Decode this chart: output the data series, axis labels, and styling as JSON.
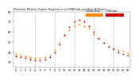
{
  "title": "Milwaukee Weather Outdoor Temperature vs THSW Index per Hour (24 Hours)",
  "hours": [
    0,
    1,
    2,
    3,
    4,
    5,
    6,
    7,
    8,
    9,
    10,
    11,
    12,
    13,
    14,
    15,
    16,
    17,
    18,
    19,
    20,
    21,
    22,
    23
  ],
  "temp": [
    38,
    37,
    36,
    35,
    34,
    34,
    35,
    37,
    42,
    49,
    56,
    62,
    66,
    67,
    66,
    63,
    58,
    53,
    49,
    46,
    44,
    42,
    41,
    39
  ],
  "thsw": [
    36,
    35,
    34,
    33,
    32,
    32,
    33,
    35,
    40,
    48,
    57,
    65,
    70,
    72,
    70,
    66,
    60,
    54,
    49,
    45,
    43,
    40,
    38,
    37
  ],
  "temp_color": "#FF8800",
  "thsw_color": "#CC0000",
  "bg_color": "#ffffff",
  "plot_bg": "#ffffff",
  "grid_color": "#aaaaaa",
  "ylim": [
    25,
    80
  ],
  "xlim": [
    -0.5,
    23.5
  ],
  "yticks": [
    30,
    40,
    50,
    60,
    70,
    80
  ],
  "xticks": [
    0,
    1,
    2,
    3,
    4,
    5,
    6,
    7,
    8,
    9,
    10,
    11,
    12,
    13,
    14,
    15,
    16,
    17,
    18,
    19,
    20,
    21,
    22,
    23
  ],
  "legend_labels": [
    "Outdoor Temp",
    "THSW Index"
  ],
  "legend_colors": [
    "#FF8800",
    "#CC0000"
  ],
  "legend_bar_color": "#FF8800",
  "legend_bar2_color": "#CC0000"
}
